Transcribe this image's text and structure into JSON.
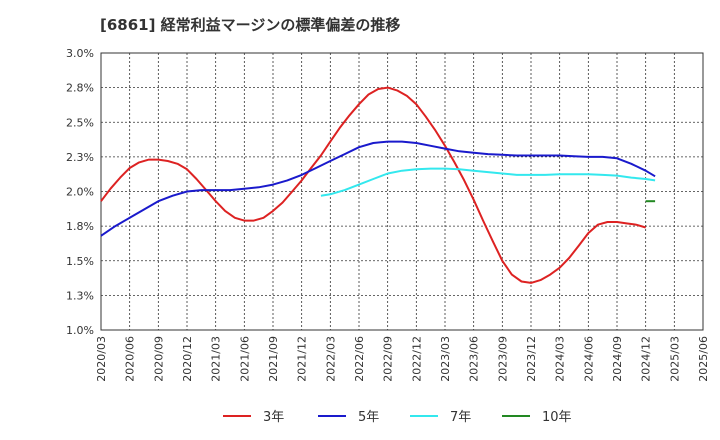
{
  "chart_data": {
    "type": "line",
    "title": "[6861]  経常利益マージンの標準偏差の推移",
    "xlabel": "",
    "ylabel": "",
    "x_ticks": [
      "2020/03",
      "2020/06",
      "2020/09",
      "2020/12",
      "2021/03",
      "2021/06",
      "2021/09",
      "2021/12",
      "2022/03",
      "2022/06",
      "2022/09",
      "2022/12",
      "2023/03",
      "2023/06",
      "2023/09",
      "2023/12",
      "2024/03",
      "2024/06",
      "2024/09",
      "2024/12",
      "2025/03",
      "2025/06"
    ],
    "y_ticks": [
      "1.0%",
      "1.3%",
      "1.5%",
      "1.8%",
      "2.0%",
      "2.3%",
      "2.5%",
      "2.8%",
      "3.0%"
    ],
    "y_tick_values": [
      1.0,
      1.25,
      1.5,
      1.75,
      2.0,
      2.25,
      2.5,
      2.75,
      3.0
    ],
    "ylim": [
      1.0,
      3.0
    ],
    "grid": true,
    "legend_position": "bottom",
    "series": [
      {
        "name": "3年",
        "color": "#dd2222",
        "points": [
          [
            0,
            1.93
          ],
          [
            0.33,
            2.02
          ],
          [
            0.67,
            2.1
          ],
          [
            1,
            2.17
          ],
          [
            1.33,
            2.21
          ],
          [
            1.67,
            2.23
          ],
          [
            2,
            2.23
          ],
          [
            2.33,
            2.22
          ],
          [
            2.67,
            2.2
          ],
          [
            3,
            2.16
          ],
          [
            3.33,
            2.09
          ],
          [
            3.67,
            2.01
          ],
          [
            4,
            1.93
          ],
          [
            4.33,
            1.86
          ],
          [
            4.67,
            1.81
          ],
          [
            5,
            1.79
          ],
          [
            5.33,
            1.79
          ],
          [
            5.67,
            1.81
          ],
          [
            6,
            1.86
          ],
          [
            6.33,
            1.92
          ],
          [
            6.67,
            2.0
          ],
          [
            7,
            2.08
          ],
          [
            7.33,
            2.17
          ],
          [
            7.67,
            2.26
          ],
          [
            8,
            2.36
          ],
          [
            8.33,
            2.46
          ],
          [
            8.67,
            2.55
          ],
          [
            9,
            2.63
          ],
          [
            9.33,
            2.7
          ],
          [
            9.67,
            2.74
          ],
          [
            10,
            2.75
          ],
          [
            10.33,
            2.73
          ],
          [
            10.67,
            2.69
          ],
          [
            11,
            2.63
          ],
          [
            11.33,
            2.54
          ],
          [
            11.67,
            2.44
          ],
          [
            12,
            2.33
          ],
          [
            12.33,
            2.21
          ],
          [
            12.67,
            2.08
          ],
          [
            13,
            1.94
          ],
          [
            13.33,
            1.79
          ],
          [
            13.67,
            1.64
          ],
          [
            14,
            1.5
          ],
          [
            14.33,
            1.4
          ],
          [
            14.67,
            1.35
          ],
          [
            15,
            1.34
          ],
          [
            15.33,
            1.36
          ],
          [
            15.67,
            1.4
          ],
          [
            16,
            1.45
          ],
          [
            16.33,
            1.52
          ],
          [
            16.67,
            1.61
          ],
          [
            17,
            1.7
          ],
          [
            17.33,
            1.76
          ],
          [
            17.67,
            1.78
          ],
          [
            18,
            1.78
          ],
          [
            18.33,
            1.77
          ],
          [
            18.67,
            1.76
          ],
          [
            19,
            1.74
          ]
        ]
      },
      {
        "name": "5年",
        "color": "#1a1acc",
        "points": [
          [
            0,
            1.68
          ],
          [
            0.5,
            1.75
          ],
          [
            1,
            1.81
          ],
          [
            1.5,
            1.87
          ],
          [
            2,
            1.93
          ],
          [
            2.5,
            1.97
          ],
          [
            3,
            2.0
          ],
          [
            3.5,
            2.01
          ],
          [
            4,
            2.01
          ],
          [
            4.5,
            2.01
          ],
          [
            5,
            2.02
          ],
          [
            5.5,
            2.03
          ],
          [
            6,
            2.05
          ],
          [
            6.5,
            2.08
          ],
          [
            7,
            2.12
          ],
          [
            7.5,
            2.17
          ],
          [
            8,
            2.22
          ],
          [
            8.5,
            2.27
          ],
          [
            9,
            2.32
          ],
          [
            9.5,
            2.35
          ],
          [
            10,
            2.36
          ],
          [
            10.5,
            2.36
          ],
          [
            11,
            2.35
          ],
          [
            11.5,
            2.33
          ],
          [
            12,
            2.31
          ],
          [
            12.5,
            2.29
          ],
          [
            13,
            2.28
          ],
          [
            13.5,
            2.27
          ],
          [
            14,
            2.265
          ],
          [
            14.5,
            2.26
          ],
          [
            15,
            2.26
          ],
          [
            15.5,
            2.26
          ],
          [
            16,
            2.26
          ],
          [
            16.5,
            2.255
          ],
          [
            17,
            2.25
          ],
          [
            17.5,
            2.25
          ],
          [
            18,
            2.24
          ],
          [
            18.5,
            2.2
          ],
          [
            19,
            2.15
          ],
          [
            19.33,
            2.11
          ]
        ]
      },
      {
        "name": "7年",
        "color": "#33e8ee",
        "points": [
          [
            7.67,
            1.97
          ],
          [
            8,
            1.98
          ],
          [
            8.5,
            2.01
          ],
          [
            9,
            2.05
          ],
          [
            9.5,
            2.09
          ],
          [
            10,
            2.13
          ],
          [
            10.5,
            2.15
          ],
          [
            11,
            2.16
          ],
          [
            11.5,
            2.165
          ],
          [
            12,
            2.165
          ],
          [
            12.5,
            2.16
          ],
          [
            13,
            2.15
          ],
          [
            13.5,
            2.14
          ],
          [
            14,
            2.13
          ],
          [
            14.5,
            2.12
          ],
          [
            15,
            2.12
          ],
          [
            15.5,
            2.12
          ],
          [
            16,
            2.125
          ],
          [
            16.5,
            2.125
          ],
          [
            17,
            2.125
          ],
          [
            17.5,
            2.12
          ],
          [
            18,
            2.115
          ],
          [
            18.5,
            2.1
          ],
          [
            19,
            2.09
          ],
          [
            19.33,
            2.08
          ]
        ]
      },
      {
        "name": "10年",
        "color": "#228822",
        "points": [
          [
            19,
            1.93
          ],
          [
            19.33,
            1.93
          ]
        ]
      }
    ]
  }
}
